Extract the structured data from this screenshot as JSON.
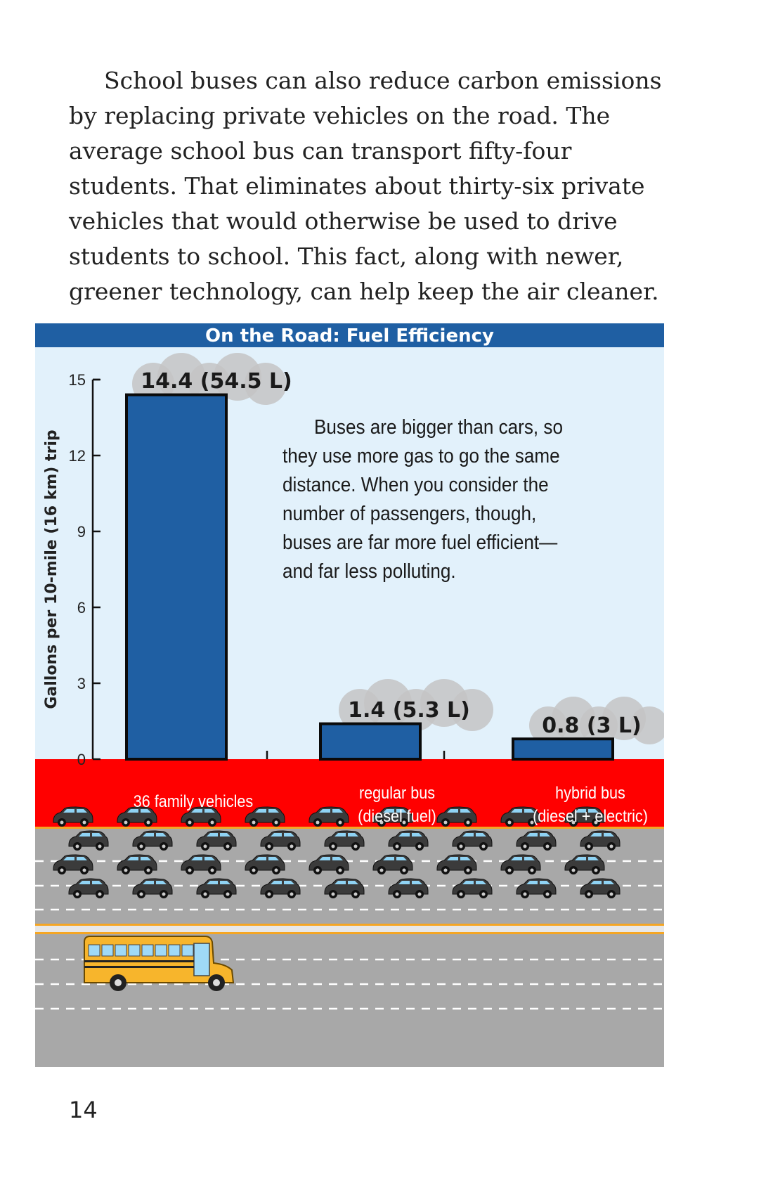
{
  "body_text": "School buses can also reduce carbon emissions by replacing private vehicles on the road. The average school bus can transport fifty-four students. That eliminates about thirty-six private vehicles that would otherwise be used to drive students to school. This fact, along with newer, greener technology, can help keep the air cleaner.",
  "figure": {
    "annotation": "Buses are bigger than cars, so they use more gas to go the same distance. When you consider the number of passengers, though, buses are far more fuel efficient—and far less polluting.",
    "road_labels": [
      {
        "line1": "36 family vehicles",
        "line2": ""
      },
      {
        "line1": "regular bus",
        "line2": "(diesel fuel)"
      },
      {
        "line1": "hybrid bus",
        "line2": "(diesel + electric)"
      }
    ],
    "car_count": 36,
    "car_rows": 4
  },
  "chart_data": {
    "type": "bar",
    "title": "On the Road: Fuel Efficiency",
    "ylabel": "Gallons per 10-mile (16 km) trip",
    "xlabel": "",
    "categories": [
      "36 family vehicles",
      "regular bus (diesel fuel)",
      "hybrid bus (diesel + electric)"
    ],
    "values": [
      14.4,
      1.4,
      0.8
    ],
    "data_labels": [
      "14.4 (54.5 L)",
      "1.4 (5.3 L)",
      "0.8 (3 L)"
    ],
    "ylim": [
      0,
      15
    ],
    "yticks": [
      0,
      3,
      6,
      9,
      12,
      15
    ],
    "grid": false,
    "bar_color": "#1f5fa3"
  },
  "colors": {
    "title_bar": "#1f5fa3",
    "sky": "#e2f1fb",
    "label_band": "#ff0000",
    "road": "#a8a8a8",
    "road_stripe": "#f5a623",
    "cloud": "#c4c4c4",
    "bus": "#f7b52c"
  },
  "page_number": "14"
}
